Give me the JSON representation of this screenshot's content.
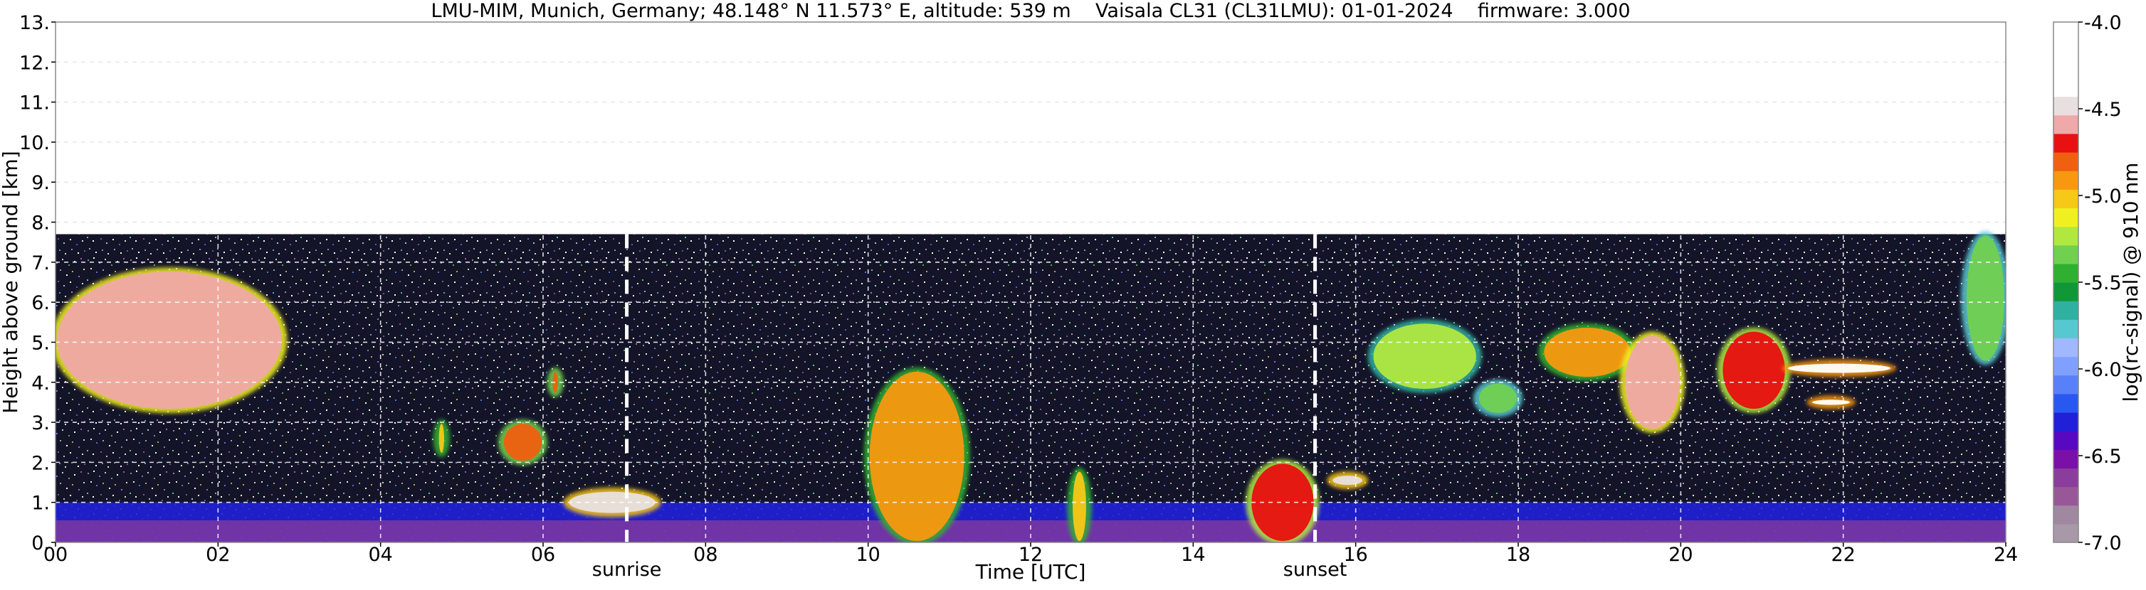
{
  "chart_data": {
    "type": "heatmap",
    "title": "LMU-MIM, Munich, Germany; 48.148° N 11.573° E, altitude: 539 m    Vaisala CL31 (CL31LMU): 01-01-2024    firmware: 3.000",
    "xlabel": "Time [UTC]",
    "ylabel": "Height above ground [km]",
    "xlim": [
      0,
      24
    ],
    "ylim": [
      0,
      13
    ],
    "x_ticks": [
      0,
      2,
      4,
      6,
      8,
      10,
      12,
      14,
      16,
      18,
      20,
      22,
      24
    ],
    "x_tick_labels": [
      "00",
      "02",
      "04",
      "06",
      "08",
      "10",
      "12",
      "14",
      "16",
      "18",
      "20",
      "22",
      "24"
    ],
    "y_ticks": [
      0,
      1,
      2,
      3,
      4,
      5,
      6,
      7,
      8,
      9,
      10,
      11,
      12,
      13
    ],
    "y_tick_labels": [
      "0.",
      "1.",
      "2.",
      "3.",
      "4.",
      "5.",
      "6.",
      "7.",
      "8.",
      "9.",
      "10.",
      "11.",
      "12.",
      "13."
    ],
    "grid": true,
    "data_top_km": 7.7,
    "colorbar": {
      "label": "log(rc-signal) @ 910 nm",
      "range": [
        -7.0,
        -4.0
      ],
      "ticks": [
        -7.0,
        -6.5,
        -6.0,
        -5.5,
        -5.0,
        -4.5,
        -4.0
      ],
      "tick_labels": [
        "-7.0",
        "-6.5",
        "-6.0",
        "-5.5",
        "-5.0",
        "-4.5",
        "-4.0"
      ],
      "colors": [
        "#a898a8",
        "#a088a0",
        "#985898",
        "#8c3c9c",
        "#7a10a8",
        "#5808c0",
        "#2020d8",
        "#2858f0",
        "#5880f8",
        "#80a0ff",
        "#a0b8ff",
        "#58c8d0",
        "#30b0a0",
        "#109838",
        "#30b030",
        "#70d050",
        "#b0e840",
        "#f0f020",
        "#f8c818",
        "#f89810",
        "#f06010",
        "#e81010",
        "#f0a8a8",
        "#e8e0e0",
        "#ffffff",
        "#ffffff",
        "#ffffff",
        "#ffffff"
      ]
    },
    "markers": [
      {
        "label": "sunrise",
        "x": 7.03
      },
      {
        "label": "sunset",
        "x": 15.5
      }
    ],
    "layers": [
      {
        "name": "boundary-layer",
        "x_start": 0,
        "x_end": 24,
        "top_km": 1.0,
        "level": -6.3
      }
    ],
    "cloud_features": [
      {
        "x_start": 0.0,
        "x_end": 2.8,
        "base_km": 3.3,
        "top_km": 6.8,
        "level": -4.6
      },
      {
        "x_start": 4.7,
        "x_end": 4.8,
        "base_km": 2.2,
        "top_km": 3.0,
        "level": -5.0
      },
      {
        "x_start": 5.5,
        "x_end": 6.0,
        "base_km": 2.0,
        "top_km": 3.0,
        "level": -4.8
      },
      {
        "x_start": 6.1,
        "x_end": 6.2,
        "base_km": 3.7,
        "top_km": 4.3,
        "level": -4.8
      },
      {
        "x_start": 6.3,
        "x_end": 7.4,
        "base_km": 0.7,
        "top_km": 1.3,
        "level": -4.5
      },
      {
        "x_start": 10.0,
        "x_end": 11.2,
        "base_km": 0.0,
        "top_km": 4.3,
        "level": -4.9
      },
      {
        "x_start": 12.5,
        "x_end": 12.7,
        "base_km": 0.0,
        "top_km": 1.8,
        "level": -5.0
      },
      {
        "x_start": 14.7,
        "x_end": 15.5,
        "base_km": 0.0,
        "top_km": 2.0,
        "level": -4.7
      },
      {
        "x_start": 15.7,
        "x_end": 16.1,
        "base_km": 1.4,
        "top_km": 1.7,
        "level": -4.5
      },
      {
        "x_start": 16.2,
        "x_end": 17.5,
        "base_km": 3.8,
        "top_km": 5.5,
        "level": -5.2
      },
      {
        "x_start": 17.5,
        "x_end": 18.0,
        "base_km": 3.2,
        "top_km": 4.0,
        "level": -5.3
      },
      {
        "x_start": 18.3,
        "x_end": 19.4,
        "base_km": 4.1,
        "top_km": 5.4,
        "level": -4.9
      },
      {
        "x_start": 19.3,
        "x_end": 20.0,
        "base_km": 2.8,
        "top_km": 5.2,
        "level": -4.6
      },
      {
        "x_start": 20.5,
        "x_end": 21.3,
        "base_km": 3.3,
        "top_km": 5.3,
        "level": -4.7
      },
      {
        "x_start": 21.3,
        "x_end": 22.6,
        "base_km": 4.2,
        "top_km": 4.5,
        "level": -4.4
      },
      {
        "x_start": 21.6,
        "x_end": 22.1,
        "base_km": 3.4,
        "top_km": 3.6,
        "level": -4.4
      },
      {
        "x_start": 23.5,
        "x_end": 24.0,
        "base_km": 4.5,
        "top_km": 7.7,
        "level": -5.3
      }
    ]
  }
}
